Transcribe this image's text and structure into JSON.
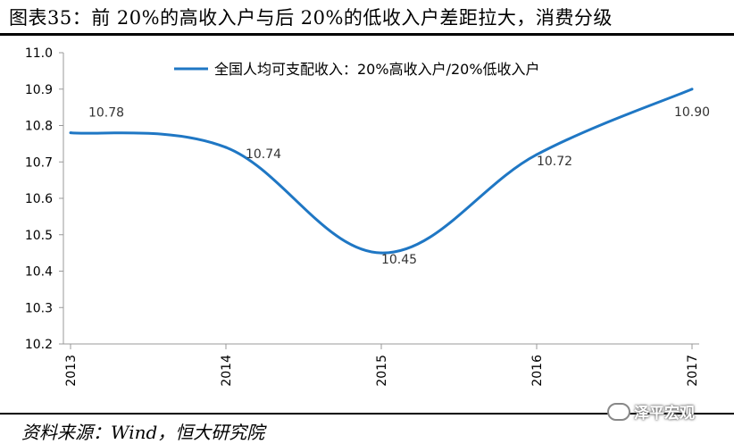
{
  "header": {
    "title": "图表35：前 20%的高收入户与后 20%的低收入户差距拉大，消费分级"
  },
  "footer": {
    "source": "资料来源：Wind，恒大研究院",
    "watermark": "泽平宏观"
  },
  "chart_data": {
    "type": "line",
    "title": "",
    "xlabel": "",
    "ylabel": "",
    "x": [
      "2013",
      "2014",
      "2015",
      "2016",
      "2017"
    ],
    "ylim": [
      10.2,
      11.0
    ],
    "yticks": [
      "10.2",
      "10.3",
      "10.4",
      "10.5",
      "10.6",
      "10.7",
      "10.8",
      "10.9",
      "11.0"
    ],
    "grid": false,
    "legend": "top",
    "series": [
      {
        "name": "全国人均可支配收入：20%高收入户/20%低收入户",
        "values": [
          10.78,
          10.74,
          10.45,
          10.72,
          10.9
        ],
        "labels": [
          "10.78",
          "10.74",
          "10.45",
          "10.72",
          "10.90"
        ],
        "color": "#1f77c4"
      }
    ]
  }
}
